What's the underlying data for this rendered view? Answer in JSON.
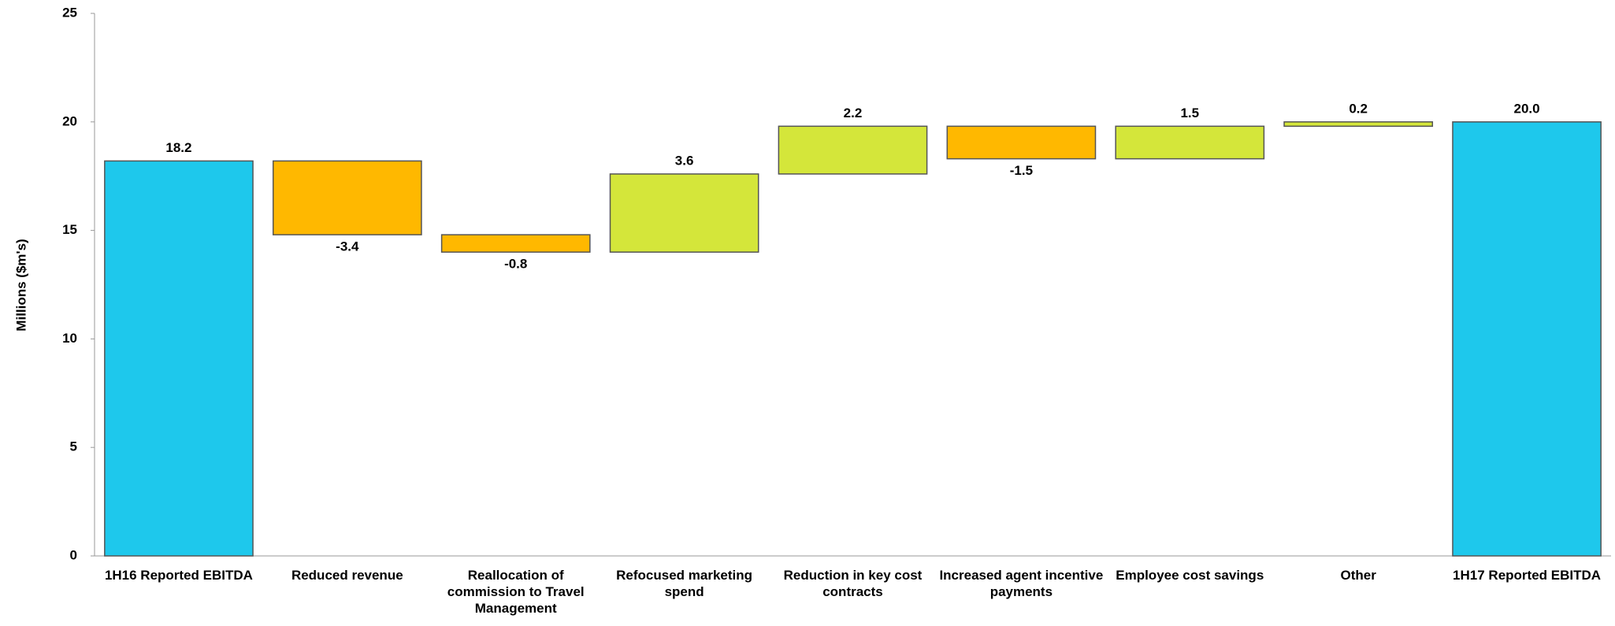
{
  "chart_data": {
    "type": "waterfall",
    "y_label": "Millions  ($m's)",
    "categories": [
      "1H16 Reported EBITDA",
      "Reduced revenue",
      "Reallocation of commission to Travel Management",
      "Refocused marketing spend",
      "Reduction in key cost contracts",
      "Increased agent incentive payments",
      "Employee cost savings",
      "Other",
      "1H17 Reported EBITDA"
    ],
    "values": [
      18.2,
      -3.4,
      -0.8,
      3.6,
      2.2,
      -1.5,
      1.5,
      0.2,
      20.0
    ],
    "value_labels": [
      "18.2",
      "-3.4",
      "-0.8",
      "3.6",
      "2.2",
      "-1.5",
      "1.5",
      "0.2",
      "20.0"
    ],
    "total_color": "#1ec8ec",
    "increase_color": "#d4e63a",
    "decrease_color": "#ffb800",
    "ylim": [
      0,
      25
    ],
    "yticks": [
      0,
      5,
      10,
      15,
      20,
      25
    ],
    "grid": false
  }
}
